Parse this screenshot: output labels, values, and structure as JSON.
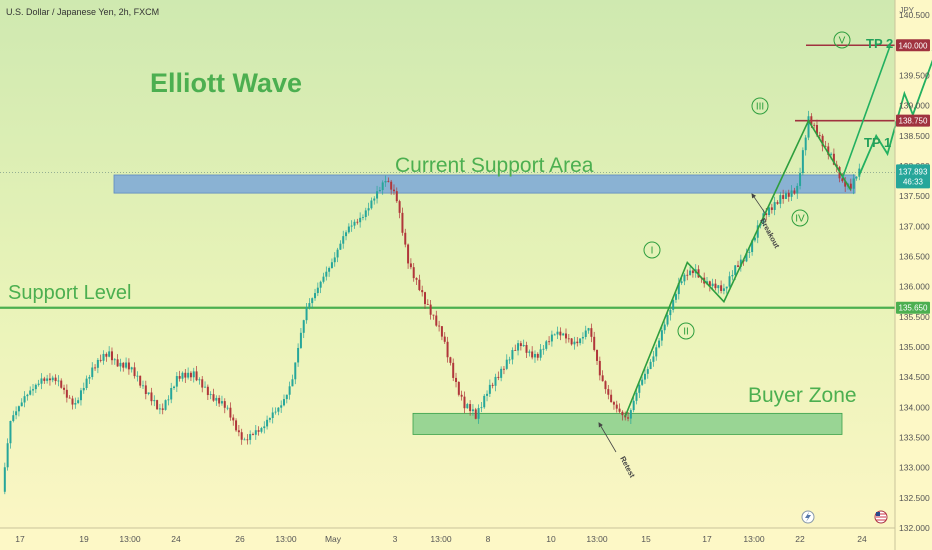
{
  "header": {
    "symbol_line": "U.S. Dollar / Japanese Yen, 2h, FXCM",
    "currency": "JPY"
  },
  "annotations": {
    "title": "Elliott Wave",
    "current_support": "Current Support Area",
    "support_level": "Support Level",
    "buyer_zone": "Buyer Zone",
    "breakout": "Breakout",
    "retest": "Retest",
    "tp1": "TP 1",
    "tp2": "TP 2",
    "waves": [
      "I",
      "II",
      "III",
      "IV",
      "V"
    ]
  },
  "colors": {
    "background": "#fdf8c6",
    "accent_green": "#4caf50",
    "candle_up": "#26a69a",
    "candle_down": "#b0363a",
    "support_zone": "#7ba7d8",
    "buyer_zone": "#8fd18f",
    "tp_line": "#a0323f"
  },
  "chart_data": {
    "type": "line",
    "title": "Elliott Wave",
    "instrument": "U.S. Dollar / Japanese Yen",
    "timeframe": "2h",
    "source": "FXCM",
    "ylim": [
      132.0,
      140.75
    ],
    "y_unit": "JPY",
    "y_ticks": [
      "132.000",
      "132.500",
      "133.000",
      "133.500",
      "134.000",
      "134.500",
      "135.000",
      "135.500",
      "136.000",
      "136.500",
      "137.000",
      "137.500",
      "138.000",
      "138.500",
      "139.000",
      "139.500",
      "140.000",
      "140.500"
    ],
    "x_ticks": [
      "17",
      "19",
      "13:00",
      "24",
      "26",
      "13:00",
      "May",
      "3",
      "13:00",
      "8",
      "10",
      "13:00",
      "15",
      "17",
      "13:00",
      "22",
      "24"
    ],
    "price_labels": {
      "current_price": "137.893",
      "countdown": "46:33",
      "support_level": "135.650",
      "tp1": "138.750",
      "tp2": "140.000"
    },
    "levels": {
      "support_level": 135.65,
      "tp1": 138.75,
      "tp2": 140.0,
      "current_support_zone": [
        137.55,
        137.85
      ],
      "buyer_zone": [
        133.55,
        133.9
      ],
      "current_price": 137.893
    },
    "price_path": [
      {
        "i": 0,
        "p": 132.6
      },
      {
        "i": 3,
        "p": 133.7
      },
      {
        "i": 8,
        "p": 134.2
      },
      {
        "i": 14,
        "p": 134.5
      },
      {
        "i": 20,
        "p": 134.35
      },
      {
        "i": 26,
        "p": 134.1
      },
      {
        "i": 32,
        "p": 134.6
      },
      {
        "i": 38,
        "p": 134.9
      },
      {
        "i": 44,
        "p": 134.7
      },
      {
        "i": 50,
        "p": 134.3
      },
      {
        "i": 56,
        "p": 134.0
      },
      {
        "i": 62,
        "p": 134.4
      },
      {
        "i": 68,
        "p": 134.6
      },
      {
        "i": 74,
        "p": 134.2
      },
      {
        "i": 80,
        "p": 133.9
      },
      {
        "i": 86,
        "p": 133.5
      },
      {
        "i": 92,
        "p": 133.6
      },
      {
        "i": 98,
        "p": 134.0
      },
      {
        "i": 103,
        "p": 134.5
      },
      {
        "i": 108,
        "p": 135.6
      },
      {
        "i": 114,
        "p": 136.2
      },
      {
        "i": 120,
        "p": 136.7
      },
      {
        "i": 126,
        "p": 137.1
      },
      {
        "i": 132,
        "p": 137.5
      },
      {
        "i": 136,
        "p": 137.75
      },
      {
        "i": 140,
        "p": 137.4
      },
      {
        "i": 144,
        "p": 136.5
      },
      {
        "i": 150,
        "p": 135.7
      },
      {
        "i": 156,
        "p": 135.2
      },
      {
        "i": 160,
        "p": 134.6
      },
      {
        "i": 164,
        "p": 134.0
      },
      {
        "i": 168,
        "p": 133.8
      },
      {
        "i": 172,
        "p": 134.3
      },
      {
        "i": 178,
        "p": 134.7
      },
      {
        "i": 184,
        "p": 135.0
      },
      {
        "i": 190,
        "p": 134.9
      },
      {
        "i": 196,
        "p": 135.2
      },
      {
        "i": 202,
        "p": 135.1
      },
      {
        "i": 208,
        "p": 135.3
      },
      {
        "i": 212,
        "p": 134.5
      },
      {
        "i": 216,
        "p": 134.1
      },
      {
        "i": 222,
        "p": 133.85
      },
      {
        "i": 228,
        "p": 134.5
      },
      {
        "i": 234,
        "p": 135.3
      },
      {
        "i": 240,
        "p": 136.0
      },
      {
        "i": 246,
        "p": 136.3
      },
      {
        "i": 252,
        "p": 136.0
      },
      {
        "i": 256,
        "p": 135.9
      },
      {
        "i": 260,
        "p": 136.3
      },
      {
        "i": 264,
        "p": 136.6
      },
      {
        "i": 270,
        "p": 137.1
      },
      {
        "i": 276,
        "p": 137.5
      },
      {
        "i": 282,
        "p": 137.65
      },
      {
        "i": 286,
        "p": 138.7
      },
      {
        "i": 290,
        "p": 138.5
      },
      {
        "i": 294,
        "p": 138.2
      },
      {
        "i": 298,
        "p": 137.7
      },
      {
        "i": 301,
        "p": 137.6
      },
      {
        "i": 304,
        "p": 137.9
      }
    ],
    "wave_path": [
      {
        "i": 221,
        "p": 133.85,
        "label": ""
      },
      {
        "i": 243,
        "p": 136.4,
        "label": "I"
      },
      {
        "i": 256,
        "p": 135.75,
        "label": "II"
      },
      {
        "i": 286,
        "p": 138.75,
        "label": "III"
      },
      {
        "i": 301,
        "p": 137.6,
        "label": "IV"
      }
    ],
    "projection_path": [
      {
        "i": 304,
        "p": 137.85
      },
      {
        "i": 310,
        "p": 138.5
      },
      {
        "i": 314,
        "p": 138.2
      },
      {
        "i": 320,
        "p": 139.2
      },
      {
        "i": 323,
        "p": 138.85
      },
      {
        "i": 332,
        "p": 140.0
      }
    ],
    "projection_path_b": [
      {
        "i": 298,
        "p": 137.8
      },
      {
        "i": 315,
        "p": 140.0
      }
    ]
  }
}
